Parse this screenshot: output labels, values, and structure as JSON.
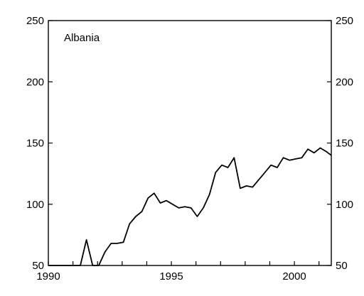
{
  "chart_data": {
    "type": "line",
    "title": "",
    "panel_label": "Albania",
    "xlabel": "",
    "ylabel": "",
    "xlim": [
      1990,
      2001.5
    ],
    "ylim": [
      50,
      250
    ],
    "grid": false,
    "x_ticks": [
      1990,
      1995,
      2000
    ],
    "x_tick_labels": [
      "1990",
      "1995",
      "2000"
    ],
    "y_ticks": [
      50,
      100,
      150,
      200,
      250
    ],
    "y_tick_labels": [
      "50",
      "100",
      "150",
      "200",
      "250"
    ],
    "series": [
      {
        "x": [
          1990.0,
          1991.3,
          1991.55,
          1991.8,
          1992.05,
          1992.3,
          1992.55,
          1992.8,
          1993.05,
          1993.3,
          1993.55,
          1993.8,
          1994.05,
          1994.3,
          1994.55,
          1994.8,
          1995.05,
          1995.3,
          1995.55,
          1995.8,
          1996.05,
          1996.3,
          1996.55,
          1996.8,
          1997.05,
          1997.3,
          1997.55,
          1997.8,
          1998.05,
          1998.3,
          1998.55,
          1998.8,
          1999.05,
          1999.3,
          1999.55,
          1999.8,
          2000.05,
          2000.3,
          2000.55,
          2000.8,
          2001.05,
          2001.3,
          2001.5
        ],
        "y": [
          50,
          50,
          71,
          50,
          50,
          61,
          68,
          68,
          69,
          84,
          90,
          94,
          105,
          109,
          101,
          103,
          100,
          97,
          98,
          97,
          90,
          97,
          108,
          126,
          132,
          130,
          138,
          113,
          115,
          114,
          120,
          126,
          132,
          130,
          138,
          136,
          137,
          138,
          145,
          142,
          146,
          143,
          140
        ]
      }
    ]
  }
}
